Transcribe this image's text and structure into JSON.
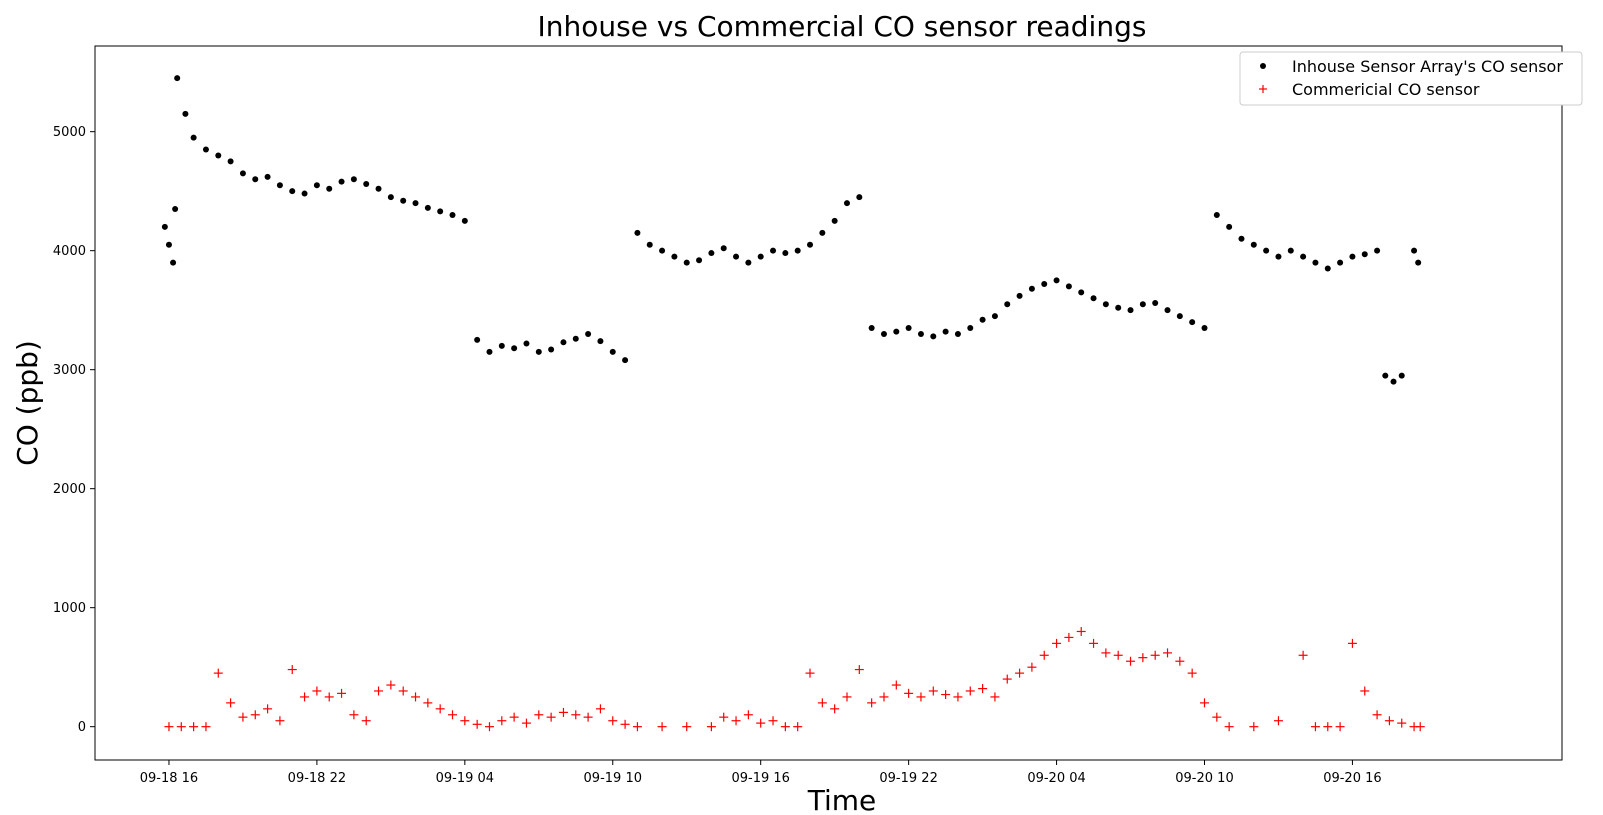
{
  "chart_data": {
    "type": "scatter",
    "title": "Inhouse vs Commercial CO sensor readings",
    "xlabel": "Time",
    "ylabel": "CO (ppb)",
    "xlim": [
      "09-18 13:00",
      "09-21 00:30"
    ],
    "ylim": [
      -280,
      5720
    ],
    "x_ticks": [
      "09-18 16",
      "09-18 22",
      "09-19 04",
      "09-19 10",
      "09-19 16",
      "09-19 22",
      "09-20 04",
      "09-20 10",
      "09-20 16"
    ],
    "y_ticks": [
      0,
      1000,
      2000,
      3000,
      4000,
      5000
    ],
    "grid": false,
    "legend_position": "top-right",
    "series": [
      {
        "name": "Inhouse Sensor Array's CO sensor",
        "marker": "dot",
        "color": "#000000",
        "points": [
          [
            "09-18 15:50",
            4200
          ],
          [
            "09-18 16:00",
            4050
          ],
          [
            "09-18 16:10",
            3900
          ],
          [
            "09-18 16:15",
            4350
          ],
          [
            "09-18 16:20",
            5450
          ],
          [
            "09-18 16:40",
            5150
          ],
          [
            "09-18 17:00",
            4950
          ],
          [
            "09-18 17:30",
            4850
          ],
          [
            "09-18 18:00",
            4800
          ],
          [
            "09-18 18:30",
            4750
          ],
          [
            "09-18 19:00",
            4650
          ],
          [
            "09-18 19:30",
            4600
          ],
          [
            "09-18 20:00",
            4620
          ],
          [
            "09-18 20:30",
            4550
          ],
          [
            "09-18 21:00",
            4500
          ],
          [
            "09-18 21:30",
            4480
          ],
          [
            "09-18 22:00",
            4550
          ],
          [
            "09-18 22:30",
            4520
          ],
          [
            "09-18 23:00",
            4580
          ],
          [
            "09-18 23:30",
            4600
          ],
          [
            "09-19 00:00",
            4560
          ],
          [
            "09-19 00:30",
            4520
          ],
          [
            "09-19 01:00",
            4450
          ],
          [
            "09-19 01:30",
            4420
          ],
          [
            "09-19 02:00",
            4400
          ],
          [
            "09-19 02:30",
            4360
          ],
          [
            "09-19 03:00",
            4330
          ],
          [
            "09-19 03:30",
            4300
          ],
          [
            "09-19 04:00",
            4250
          ],
          [
            "09-19 04:30",
            3250
          ],
          [
            "09-19 05:00",
            3150
          ],
          [
            "09-19 05:30",
            3200
          ],
          [
            "09-19 06:00",
            3180
          ],
          [
            "09-19 06:30",
            3220
          ],
          [
            "09-19 07:00",
            3150
          ],
          [
            "09-19 07:30",
            3170
          ],
          [
            "09-19 08:00",
            3230
          ],
          [
            "09-19 08:30",
            3260
          ],
          [
            "09-19 09:00",
            3300
          ],
          [
            "09-19 09:30",
            3240
          ],
          [
            "09-19 10:00",
            3150
          ],
          [
            "09-19 10:30",
            3080
          ],
          [
            "09-19 11:00",
            4150
          ],
          [
            "09-19 11:30",
            4050
          ],
          [
            "09-19 12:00",
            4000
          ],
          [
            "09-19 12:30",
            3950
          ],
          [
            "09-19 13:00",
            3900
          ],
          [
            "09-19 13:30",
            3920
          ],
          [
            "09-19 14:00",
            3980
          ],
          [
            "09-19 14:30",
            4020
          ],
          [
            "09-19 15:00",
            3950
          ],
          [
            "09-19 15:30",
            3900
          ],
          [
            "09-19 16:00",
            3950
          ],
          [
            "09-19 16:30",
            4000
          ],
          [
            "09-19 17:00",
            3980
          ],
          [
            "09-19 17:30",
            4000
          ],
          [
            "09-19 18:00",
            4050
          ],
          [
            "09-19 18:30",
            4150
          ],
          [
            "09-19 19:00",
            4250
          ],
          [
            "09-19 19:30",
            4400
          ],
          [
            "09-19 20:00",
            4450
          ],
          [
            "09-19 20:30",
            3350
          ],
          [
            "09-19 21:00",
            3300
          ],
          [
            "09-19 21:30",
            3320
          ],
          [
            "09-19 22:00",
            3350
          ],
          [
            "09-19 22:30",
            3300
          ],
          [
            "09-19 23:00",
            3280
          ],
          [
            "09-19 23:30",
            3320
          ],
          [
            "09-20 00:00",
            3300
          ],
          [
            "09-20 00:30",
            3350
          ],
          [
            "09-20 01:00",
            3420
          ],
          [
            "09-20 01:30",
            3450
          ],
          [
            "09-20 02:00",
            3550
          ],
          [
            "09-20 02:30",
            3620
          ],
          [
            "09-20 03:00",
            3680
          ],
          [
            "09-20 03:30",
            3720
          ],
          [
            "09-20 04:00",
            3750
          ],
          [
            "09-20 04:30",
            3700
          ],
          [
            "09-20 05:00",
            3650
          ],
          [
            "09-20 05:30",
            3600
          ],
          [
            "09-20 06:00",
            3550
          ],
          [
            "09-20 06:30",
            3520
          ],
          [
            "09-20 07:00",
            3500
          ],
          [
            "09-20 07:30",
            3550
          ],
          [
            "09-20 08:00",
            3560
          ],
          [
            "09-20 08:30",
            3500
          ],
          [
            "09-20 09:00",
            3450
          ],
          [
            "09-20 09:30",
            3400
          ],
          [
            "09-20 10:00",
            3350
          ],
          [
            "09-20 10:30",
            4300
          ],
          [
            "09-20 11:00",
            4200
          ],
          [
            "09-20 11:30",
            4100
          ],
          [
            "09-20 12:00",
            4050
          ],
          [
            "09-20 12:30",
            4000
          ],
          [
            "09-20 13:00",
            3950
          ],
          [
            "09-20 13:30",
            4000
          ],
          [
            "09-20 14:00",
            3950
          ],
          [
            "09-20 14:30",
            3900
          ],
          [
            "09-20 15:00",
            3850
          ],
          [
            "09-20 15:30",
            3900
          ],
          [
            "09-20 16:00",
            3950
          ],
          [
            "09-20 16:30",
            3970
          ],
          [
            "09-20 17:00",
            4000
          ],
          [
            "09-20 17:20",
            2950
          ],
          [
            "09-20 17:40",
            2900
          ],
          [
            "09-20 18:00",
            2950
          ],
          [
            "09-20 18:30",
            4000
          ],
          [
            "09-20 18:40",
            3900
          ]
        ]
      },
      {
        "name": "Commericial CO sensor",
        "marker": "plus",
        "color": "#ff0000",
        "points": [
          [
            "09-18 16:00",
            0
          ],
          [
            "09-18 16:30",
            0
          ],
          [
            "09-18 17:00",
            0
          ],
          [
            "09-18 17:30",
            0
          ],
          [
            "09-18 18:00",
            450
          ],
          [
            "09-18 18:30",
            200
          ],
          [
            "09-18 19:00",
            80
          ],
          [
            "09-18 19:30",
            100
          ],
          [
            "09-18 20:00",
            150
          ],
          [
            "09-18 20:30",
            50
          ],
          [
            "09-18 21:00",
            480
          ],
          [
            "09-18 21:30",
            250
          ],
          [
            "09-18 22:00",
            300
          ],
          [
            "09-18 22:30",
            250
          ],
          [
            "09-18 23:00",
            280
          ],
          [
            "09-18 23:30",
            100
          ],
          [
            "09-19 00:00",
            50
          ],
          [
            "09-19 00:30",
            300
          ],
          [
            "09-19 01:00",
            350
          ],
          [
            "09-19 01:30",
            300
          ],
          [
            "09-19 02:00",
            250
          ],
          [
            "09-19 02:30",
            200
          ],
          [
            "09-19 03:00",
            150
          ],
          [
            "09-19 03:30",
            100
          ],
          [
            "09-19 04:00",
            50
          ],
          [
            "09-19 04:30",
            20
          ],
          [
            "09-19 05:00",
            0
          ],
          [
            "09-19 05:30",
            50
          ],
          [
            "09-19 06:00",
            80
          ],
          [
            "09-19 06:30",
            30
          ],
          [
            "09-19 07:00",
            100
          ],
          [
            "09-19 07:30",
            80
          ],
          [
            "09-19 08:00",
            120
          ],
          [
            "09-19 08:30",
            100
          ],
          [
            "09-19 09:00",
            80
          ],
          [
            "09-19 09:30",
            150
          ],
          [
            "09-19 10:00",
            50
          ],
          [
            "09-19 10:30",
            20
          ],
          [
            "09-19 11:00",
            0
          ],
          [
            "09-19 12:00",
            0
          ],
          [
            "09-19 13:00",
            0
          ],
          [
            "09-19 14:00",
            0
          ],
          [
            "09-19 14:30",
            80
          ],
          [
            "09-19 15:00",
            50
          ],
          [
            "09-19 15:30",
            100
          ],
          [
            "09-19 16:00",
            30
          ],
          [
            "09-19 16:30",
            50
          ],
          [
            "09-19 17:00",
            0
          ],
          [
            "09-19 17:30",
            0
          ],
          [
            "09-19 18:00",
            450
          ],
          [
            "09-19 18:30",
            200
          ],
          [
            "09-19 19:00",
            150
          ],
          [
            "09-19 19:30",
            250
          ],
          [
            "09-19 20:00",
            480
          ],
          [
            "09-19 20:30",
            200
          ],
          [
            "09-19 21:00",
            250
          ],
          [
            "09-19 21:30",
            350
          ],
          [
            "09-19 22:00",
            280
          ],
          [
            "09-19 22:30",
            250
          ],
          [
            "09-19 23:00",
            300
          ],
          [
            "09-19 23:30",
            270
          ],
          [
            "09-20 00:00",
            250
          ],
          [
            "09-20 00:30",
            300
          ],
          [
            "09-20 01:00",
            320
          ],
          [
            "09-20 01:30",
            250
          ],
          [
            "09-20 02:00",
            400
          ],
          [
            "09-20 02:30",
            450
          ],
          [
            "09-20 03:00",
            500
          ],
          [
            "09-20 03:30",
            600
          ],
          [
            "09-20 04:00",
            700
          ],
          [
            "09-20 04:30",
            750
          ],
          [
            "09-20 05:00",
            800
          ],
          [
            "09-20 05:30",
            700
          ],
          [
            "09-20 06:00",
            620
          ],
          [
            "09-20 06:30",
            600
          ],
          [
            "09-20 07:00",
            550
          ],
          [
            "09-20 07:30",
            580
          ],
          [
            "09-20 08:00",
            600
          ],
          [
            "09-20 08:30",
            620
          ],
          [
            "09-20 09:00",
            550
          ],
          [
            "09-20 09:30",
            450
          ],
          [
            "09-20 10:00",
            200
          ],
          [
            "09-20 10:30",
            80
          ],
          [
            "09-20 11:00",
            0
          ],
          [
            "09-20 12:00",
            0
          ],
          [
            "09-20 13:00",
            50
          ],
          [
            "09-20 14:00",
            600
          ],
          [
            "09-20 14:30",
            0
          ],
          [
            "09-20 15:00",
            0
          ],
          [
            "09-20 15:30",
            0
          ],
          [
            "09-20 16:00",
            700
          ],
          [
            "09-20 16:30",
            300
          ],
          [
            "09-20 17:00",
            100
          ],
          [
            "09-20 17:30",
            50
          ],
          [
            "09-20 18:00",
            30
          ],
          [
            "09-20 18:30",
            0
          ],
          [
            "09-20 18:45",
            0
          ]
        ]
      }
    ]
  }
}
